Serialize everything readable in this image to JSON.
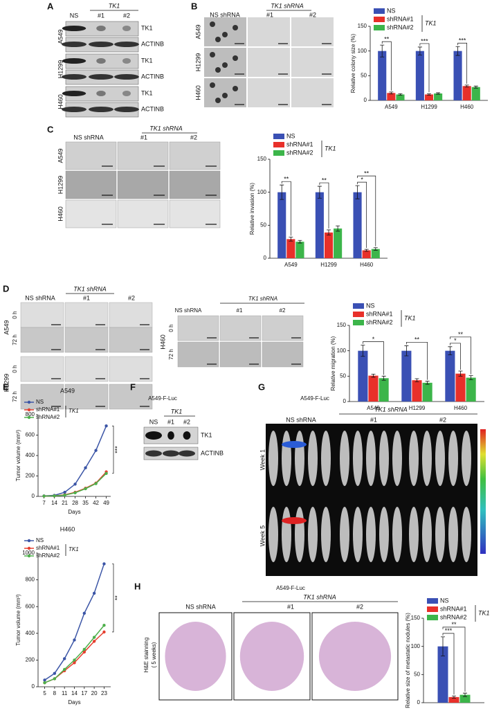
{
  "panels": {
    "A": {
      "label": "A",
      "group": "TK1",
      "lanes": [
        "NS",
        "#1",
        "#2"
      ],
      "cell_lines": [
        "A549",
        "H1299",
        "H460"
      ],
      "bands": [
        "TK1",
        "ACTINB",
        "TK1",
        "ACTINB",
        "TK1",
        "ACTINB"
      ]
    },
    "B": {
      "label": "B",
      "group": "TK1 shRNA",
      "columns": [
        "NS shRNA",
        "#1",
        "#2"
      ],
      "rows": [
        "A549",
        "H1299",
        "H460"
      ]
    },
    "C": {
      "label": "C",
      "group": "TK1 shRNA",
      "columns": [
        "NS shRNA",
        "#1",
        "#2"
      ],
      "rows": [
        "A549",
        "H1299",
        "H460"
      ]
    },
    "D": {
      "label": "D",
      "group": "TK1 shRNA",
      "columns": [
        "NS shRNA",
        "#1",
        "#2"
      ],
      "rows": [
        "A549",
        "H1299"
      ],
      "times": [
        "0 h",
        "72 h"
      ],
      "inset": {
        "group": "TK1 shRNA",
        "columns": [
          "NS shRNA",
          "#1",
          "#2"
        ],
        "row": "H460",
        "times": [
          "0 h",
          "72 h"
        ]
      }
    },
    "E": {
      "label": "E"
    },
    "F": {
      "label": "F",
      "title": "A549-F-Luc",
      "group": "TK1",
      "lanes": [
        "NS",
        "#1",
        "#2"
      ],
      "bands": [
        "TK1",
        "ACTINB"
      ]
    },
    "G": {
      "label": "G",
      "title": "A549-F-Luc",
      "group": "TK1 shRNA",
      "columns": [
        "NS shRNA",
        "#1",
        "#2"
      ],
      "rows": [
        "Week 1",
        "Week 5"
      ]
    },
    "H": {
      "label": "H",
      "title": "A549-F-Luc",
      "group": "TK1 shRNA",
      "columns": [
        "NS shRNA",
        "#1",
        "#2"
      ],
      "side_label": [
        "H&E stainning",
        "( 5 weeks)"
      ]
    }
  },
  "chart_data": [
    {
      "type": "bar",
      "ylabel": "Relative colony size (%)",
      "categories": [
        "A549",
        "H1299",
        "H460"
      ],
      "legend_group": "TK1",
      "ylim": [
        0,
        150
      ],
      "yticks": [
        0,
        50,
        100,
        150
      ],
      "series": [
        {
          "name": "NS",
          "color": "#3a50b4",
          "values": [
            100,
            100,
            100
          ],
          "errors": [
            12,
            8,
            9
          ]
        },
        {
          "name": "shRNA#1",
          "color": "#e8302a",
          "values": [
            15,
            12,
            29
          ],
          "errors": [
            2,
            1.5,
            2
          ]
        },
        {
          "name": "shRNA#2",
          "color": "#3cb54a",
          "values": [
            12,
            14,
            27
          ],
          "errors": [
            1.5,
            1.5,
            2
          ]
        }
      ],
      "significance": [
        {
          "category": "A549",
          "series": "shRNA#1",
          "label": "**"
        },
        {
          "category": "H1299",
          "series": "shRNA#1",
          "label": "***"
        },
        {
          "category": "H460",
          "series": "shRNA#1",
          "label": "***"
        }
      ]
    },
    {
      "type": "bar",
      "ylabel": "Relative invasion (%)",
      "categories": [
        "A549",
        "H1299",
        "H460"
      ],
      "legend_group": "TK1",
      "ylim": [
        0,
        150
      ],
      "yticks": [
        0,
        50,
        100,
        150
      ],
      "series": [
        {
          "name": "NS",
          "color": "#3a50b4",
          "values": [
            100,
            100,
            100
          ],
          "errors": [
            11,
            9,
            10
          ]
        },
        {
          "name": "shRNA#1",
          "color": "#e8302a",
          "values": [
            29,
            39,
            12
          ],
          "errors": [
            3,
            4,
            1.5
          ]
        },
        {
          "name": "shRNA#2",
          "color": "#3cb54a",
          "values": [
            25,
            45,
            14
          ],
          "errors": [
            2,
            4,
            2
          ]
        }
      ],
      "significance": [
        {
          "category": "A549",
          "series": "shRNA#1",
          "label": "**"
        },
        {
          "category": "H1299",
          "series": "shRNA#1",
          "label": "**"
        },
        {
          "category": "H460",
          "series": "shRNA#1",
          "label": "*"
        },
        {
          "category": "H460",
          "series": "shRNA#2",
          "label": "**"
        }
      ]
    },
    {
      "type": "bar",
      "ylabel": "Relative migration (%)",
      "categories": [
        "A549",
        "H1299",
        "H460"
      ],
      "legend_group": "TK1",
      "ylim": [
        0,
        150
      ],
      "yticks": [
        0,
        50,
        100,
        150
      ],
      "series": [
        {
          "name": "NS",
          "color": "#3a50b4",
          "values": [
            100,
            100,
            100
          ],
          "errors": [
            11,
            10,
            8
          ]
        },
        {
          "name": "shRNA#1",
          "color": "#e8302a",
          "values": [
            51,
            42,
            55
          ],
          "errors": [
            3,
            3,
            5
          ]
        },
        {
          "name": "shRNA#2",
          "color": "#3cb54a",
          "values": [
            46,
            37,
            47
          ],
          "errors": [
            4,
            3,
            4
          ]
        }
      ],
      "significance": [
        {
          "category": "A549",
          "series": "shRNA#2",
          "label": "*"
        },
        {
          "category": "H1299",
          "series": "shRNA#2",
          "label": "**"
        },
        {
          "category": "H460",
          "series": "shRNA#1",
          "label": "*"
        },
        {
          "category": "H460",
          "series": "shRNA#2",
          "label": "**"
        }
      ]
    },
    {
      "type": "line",
      "title": "A549",
      "xlabel": "Days",
      "ylabel": "Tumor volume (mm³)",
      "legend_group": "TK1",
      "annotation": "***",
      "x": [
        7,
        14,
        21,
        28,
        35,
        42,
        49
      ],
      "xlim": [
        3,
        52
      ],
      "xticks": [
        7,
        14,
        21,
        28,
        35,
        42,
        49
      ],
      "ylim": [
        0,
        800
      ],
      "yticks": [
        0,
        200,
        400,
        600,
        800
      ],
      "series": [
        {
          "name": "NS",
          "color": "#3b55a6",
          "values": [
            5,
            10,
            40,
            120,
            280,
            450,
            690
          ]
        },
        {
          "name": "shRNA#1",
          "color": "#e53e2e",
          "values": [
            3,
            5,
            15,
            40,
            80,
            130,
            240
          ]
        },
        {
          "name": "shRNA#2",
          "color": "#4daf4a",
          "values": [
            3,
            5,
            12,
            35,
            75,
            125,
            225
          ]
        }
      ]
    },
    {
      "type": "line",
      "title": "H460",
      "xlabel": "Days",
      "ylabel": "Tumor volume (mm³)",
      "legend_group": "TK1",
      "annotation": "**",
      "x": [
        5,
        8,
        11,
        14,
        17,
        20,
        23
      ],
      "xlim": [
        3,
        25
      ],
      "xticks": [
        5,
        8,
        11,
        14,
        17,
        20,
        23
      ],
      "ylim": [
        0,
        1000
      ],
      "yticks": [
        0,
        200,
        400,
        600,
        800,
        1000
      ],
      "series": [
        {
          "name": "NS",
          "color": "#3b55a6",
          "values": [
            50,
            100,
            210,
            350,
            550,
            700,
            920
          ]
        },
        {
          "name": "shRNA#1",
          "color": "#e53e2e",
          "values": [
            30,
            60,
            120,
            180,
            260,
            340,
            410
          ]
        },
        {
          "name": "shRNA#2",
          "color": "#4daf4a",
          "values": [
            30,
            60,
            130,
            200,
            280,
            370,
            460
          ]
        }
      ]
    },
    {
      "type": "bar",
      "ylabel": "Relative size of metastatic nodules (%)",
      "categories": [
        null
      ],
      "legend_group": "TK1",
      "ylim": [
        0,
        150
      ],
      "yticks": [
        0,
        50,
        100,
        150
      ],
      "series": [
        {
          "name": "NS",
          "color": "#3a50b4",
          "values": [
            100
          ],
          "errors": [
            17
          ]
        },
        {
          "name": "shRNA#1",
          "color": "#e8302a",
          "values": [
            10
          ],
          "errors": [
            2
          ]
        },
        {
          "name": "shRNA#2",
          "color": "#3cb54a",
          "values": [
            14
          ],
          "errors": [
            3
          ]
        }
      ],
      "significance": [
        {
          "category": null,
          "series": "shRNA#1",
          "label": "***"
        },
        {
          "category": null,
          "series": "shRNA#2",
          "label": "**"
        }
      ]
    }
  ]
}
